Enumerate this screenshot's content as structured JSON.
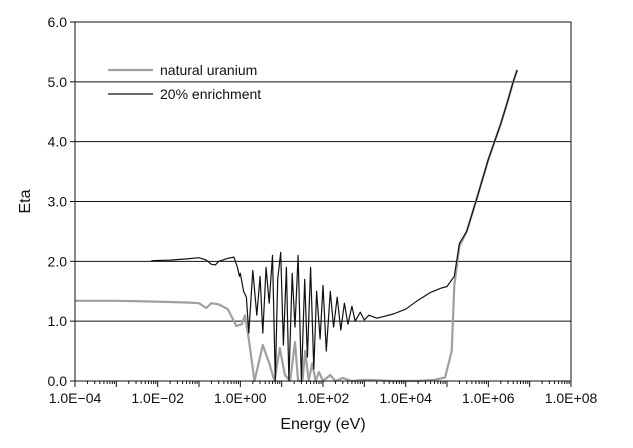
{
  "chart_data": {
    "type": "line",
    "title": "",
    "xlabel": "Energy (eV)",
    "ylabel": "Eta",
    "x_scale": "log",
    "xlim": [
      0.0001,
      100000000
    ],
    "ylim": [
      0,
      6
    ],
    "x_ticks": [
      "1.0E−04",
      "1.0E−02",
      "1.0E+00",
      "1.0E+02",
      "1.0E+04",
      "1.0E+06",
      "1.0E+08"
    ],
    "y_ticks": [
      "0.0",
      "1.0",
      "2.0",
      "3.0",
      "4.0",
      "5.0",
      "6.0"
    ],
    "grid": "horizontal",
    "legend_position": "top-left",
    "series": [
      {
        "name": "natural uranium",
        "color": "#a0a0a0",
        "points": [
          [
            0.0001,
            1.34
          ],
          [
            0.001,
            1.34
          ],
          [
            0.005,
            1.33
          ],
          [
            0.02,
            1.32
          ],
          [
            0.06,
            1.31
          ],
          [
            0.1,
            1.3
          ],
          [
            0.15,
            1.22
          ],
          [
            0.2,
            1.3
          ],
          [
            0.3,
            1.28
          ],
          [
            0.5,
            1.2
          ],
          [
            0.8,
            0.92
          ],
          [
            1.1,
            0.95
          ],
          [
            1.3,
            1.1
          ],
          [
            1.6,
            0.7
          ],
          [
            2.2,
            0.0
          ],
          [
            3.5,
            0.6
          ],
          [
            5,
            0.3
          ],
          [
            6.7,
            0.0
          ],
          [
            9,
            0.55
          ],
          [
            12,
            0.1
          ],
          [
            16,
            0.0
          ],
          [
            21,
            0.65
          ],
          [
            25,
            0.0
          ],
          [
            32,
            0.0
          ],
          [
            37,
            0.5
          ],
          [
            45,
            0.0
          ],
          [
            55,
            0.3
          ],
          [
            66,
            0.0
          ],
          [
            80,
            0.15
          ],
          [
            100,
            0.0
          ],
          [
            150,
            0.1
          ],
          [
            200,
            0.0
          ],
          [
            300,
            0.05
          ],
          [
            500,
            0.0
          ],
          [
            1000,
            0.02
          ],
          [
            5000,
            0.0
          ],
          [
            20000,
            0.0
          ],
          [
            50000,
            0.02
          ],
          [
            90000,
            0.06
          ],
          [
            130000,
            0.5
          ],
          [
            150000,
            1.6
          ],
          [
            200000,
            2.25
          ],
          [
            300000,
            2.5
          ],
          [
            500000,
            3.0
          ],
          [
            1000000,
            3.7
          ],
          [
            2000000,
            4.3
          ],
          [
            3000000,
            4.7
          ],
          [
            4000000,
            5.0
          ],
          [
            5000000,
            5.2
          ]
        ]
      },
      {
        "name": "20% enrichment",
        "color": "#111111",
        "points": [
          [
            0.007,
            2.01
          ],
          [
            0.02,
            2.02
          ],
          [
            0.05,
            2.04
          ],
          [
            0.1,
            2.06
          ],
          [
            0.15,
            2.02
          ],
          [
            0.2,
            1.95
          ],
          [
            0.25,
            1.94
          ],
          [
            0.3,
            2.0
          ],
          [
            0.5,
            2.05
          ],
          [
            0.7,
            2.07
          ],
          [
            0.85,
            1.9
          ],
          [
            0.95,
            1.75
          ],
          [
            1.0,
            1.8
          ],
          [
            1.2,
            1.5
          ],
          [
            1.4,
            1.4
          ],
          [
            1.6,
            0.8
          ],
          [
            2.0,
            1.85
          ],
          [
            2.5,
            1.1
          ],
          [
            3.0,
            1.75
          ],
          [
            3.5,
            0.8
          ],
          [
            4.2,
            1.9
          ],
          [
            5.0,
            1.3
          ],
          [
            6.0,
            2.1
          ],
          [
            7.0,
            0.0
          ],
          [
            8.0,
            1.7
          ],
          [
            9.5,
            2.15
          ],
          [
            11,
            0.6
          ],
          [
            13,
            1.9
          ],
          [
            15,
            0.0
          ],
          [
            18,
            1.8
          ],
          [
            21,
            0.9
          ],
          [
            25,
            2.1
          ],
          [
            30,
            0.0
          ],
          [
            36,
            1.7
          ],
          [
            42,
            0.4
          ],
          [
            50,
            1.9
          ],
          [
            60,
            0.2
          ],
          [
            70,
            1.5
          ],
          [
            85,
            0.7
          ],
          [
            100,
            1.6
          ],
          [
            120,
            0.5
          ],
          [
            150,
            1.5
          ],
          [
            180,
            0.9
          ],
          [
            220,
            1.4
          ],
          [
            270,
            0.85
          ],
          [
            330,
            1.3
          ],
          [
            400,
            0.95
          ],
          [
            500,
            1.25
          ],
          [
            600,
            1.0
          ],
          [
            800,
            1.15
          ],
          [
            1000,
            1.02
          ],
          [
            1300,
            1.1
          ],
          [
            2000,
            1.05
          ],
          [
            3000,
            1.08
          ],
          [
            5000,
            1.12
          ],
          [
            10000,
            1.2
          ],
          [
            20000,
            1.35
          ],
          [
            40000,
            1.48
          ],
          [
            70000,
            1.55
          ],
          [
            100000,
            1.58
          ],
          [
            150000,
            1.75
          ],
          [
            200000,
            2.3
          ],
          [
            300000,
            2.5
          ],
          [
            500000,
            3.0
          ],
          [
            1000000,
            3.7
          ],
          [
            2000000,
            4.3
          ],
          [
            3000000,
            4.7
          ],
          [
            4000000,
            5.0
          ],
          [
            5000000,
            5.2
          ]
        ]
      }
    ]
  }
}
